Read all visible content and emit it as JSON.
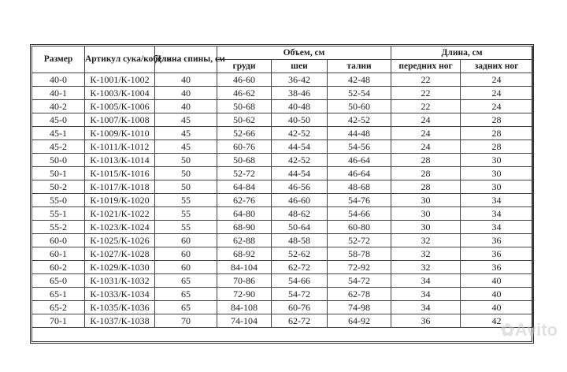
{
  "headers": {
    "size": "Размер",
    "article": "Артикул сука/кобель",
    "back_length": "Длина спины, см",
    "volume": "Объем, см",
    "length": "Длина, см",
    "chest": "груди",
    "neck": "шеи",
    "waist": "талии",
    "front_legs": "передних ног",
    "hind_legs": "задних ног"
  },
  "rows": [
    [
      "40-0",
      "К-1001/К-1002",
      "40",
      "46-60",
      "36-42",
      "42-48",
      "22",
      "24"
    ],
    [
      "40-1",
      "К-1003/К-1004",
      "40",
      "46-62",
      "38-46",
      "52-54",
      "22",
      "24"
    ],
    [
      "40-2",
      "К-1005/К-1006",
      "40",
      "50-68",
      "40-48",
      "50-60",
      "22",
      "24"
    ],
    [
      "45-0",
      "К-1007/К-1008",
      "45",
      "50-62",
      "40-50",
      "42-52",
      "24",
      "28"
    ],
    [
      "45-1",
      "К-1009/К-1010",
      "45",
      "52-66",
      "42-52",
      "44-48",
      "24",
      "28"
    ],
    [
      "45-2",
      "К-1011/К-1012",
      "45",
      "60-76",
      "44-54",
      "54-56",
      "24",
      "28"
    ],
    [
      "50-0",
      "К-1013/К-1014",
      "50",
      "50-68",
      "42-52",
      "46-64",
      "28",
      "30"
    ],
    [
      "50-1",
      "К-1015/К-1016",
      "50",
      "52-72",
      "44-54",
      "46-64",
      "28",
      "30"
    ],
    [
      "50-2",
      "К-1017/К-1018",
      "50",
      "64-84",
      "46-56",
      "48-68",
      "28",
      "30"
    ],
    [
      "55-0",
      "К-1019/К-1020",
      "55",
      "62-76",
      "46-60",
      "54-76",
      "30",
      "34"
    ],
    [
      "55-1",
      "К-1021/К-1022",
      "55",
      "64-80",
      "48-62",
      "54-66",
      "30",
      "34"
    ],
    [
      "55-2",
      "К-1023/К-1024",
      "55",
      "68-90",
      "50-64",
      "60-80",
      "30",
      "34"
    ],
    [
      "60-0",
      "К-1025/К-1026",
      "60",
      "62-88",
      "48-58",
      "52-72",
      "32",
      "36"
    ],
    [
      "60-1",
      "К-1027/К-1028",
      "60",
      "68-92",
      "52-62",
      "58-78",
      "32",
      "36"
    ],
    [
      "60-2",
      "К-1029/К-1030",
      "60",
      "84-104",
      "62-72",
      "72-92",
      "32",
      "36"
    ],
    [
      "65-0",
      "К-1031/К-1032",
      "65",
      "70-86",
      "54-66",
      "54-72",
      "34",
      "40"
    ],
    [
      "65-1",
      "К-1033/К-1034",
      "65",
      "72-90",
      "54-72",
      "62-78",
      "34",
      "40"
    ],
    [
      "65-2",
      "К-1035/К-1036",
      "65",
      "84-108",
      "60-76",
      "74-98",
      "34",
      "40"
    ],
    [
      "70-1",
      "К-1037/К-1038",
      "70",
      "74-104",
      "62-72",
      "64-92",
      "36",
      "42"
    ]
  ],
  "watermark": "Avito"
}
